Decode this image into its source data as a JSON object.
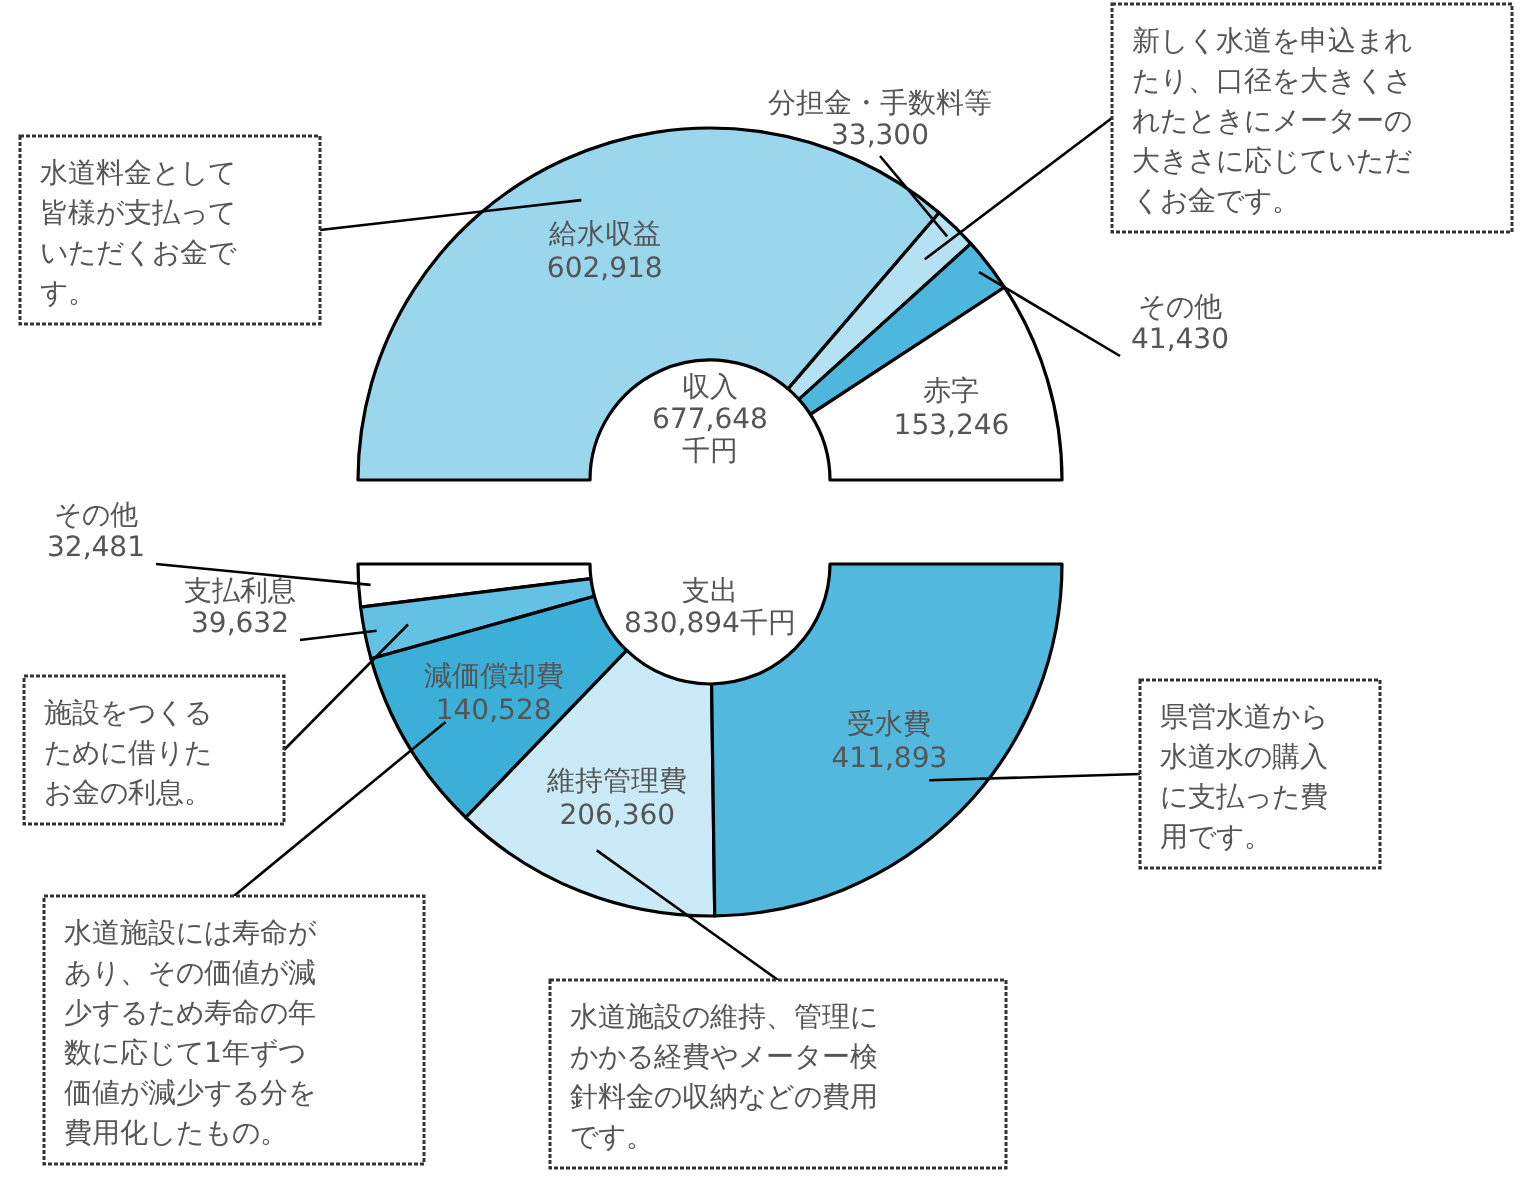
{
  "chart_data": [
    {
      "type": "donut",
      "title": "収入 677,648 千円",
      "categories": [
        "給水収益",
        "分担金・手数料等",
        "その他",
        "赤字"
      ],
      "values": [
        602918,
        33300,
        41430,
        153246
      ],
      "value_labels": [
        "602,918",
        "33,300",
        "41,430",
        "153,246"
      ],
      "colors": [
        "#9ad6ec",
        "#b5e2f2",
        "#4db7de",
        "#ffffff"
      ],
      "annotations": [
        {
          "text": "水道料金として皆様が支払っていただくお金です。",
          "x": "給水収益"
        },
        {
          "text": "新しく水道を申込まれたり、口径を大きくされたときにメーターの大きさに応じていただくお金です。",
          "x": "分担金・手数料等"
        }
      ]
    },
    {
      "type": "donut",
      "title": "支出 830,894千円",
      "categories": [
        "その他",
        "支払利息",
        "減価償却費",
        "維持管理費",
        "受水費"
      ],
      "values": [
        32481,
        39632,
        140528,
        206360,
        411893
      ],
      "value_labels": [
        "32,481",
        "39,632",
        "140,528",
        "206,360",
        "411,893"
      ],
      "colors": [
        "#ffffff",
        "#63c2e4",
        "#3cafd9",
        "#c9eaf6",
        "#52b8de"
      ],
      "annotations": [
        {
          "text": "施設をつくるために借りたお金の利息。",
          "x": "支払利息"
        },
        {
          "text": "水道施設には寿命があり、その価値が減少するため寿命の年数に応じて1年ずつ価値が減少する分を費用化したもの。",
          "x": "減価償却費"
        },
        {
          "text": "水道施設の維持、管理にかかる経費やメーター検針料金の収納などの費用です。",
          "x": "維持管理費"
        },
        {
          "text": "県営水道から水道水の購入に支払った費用です。",
          "x": "受水費"
        }
      ]
    }
  ]
}
